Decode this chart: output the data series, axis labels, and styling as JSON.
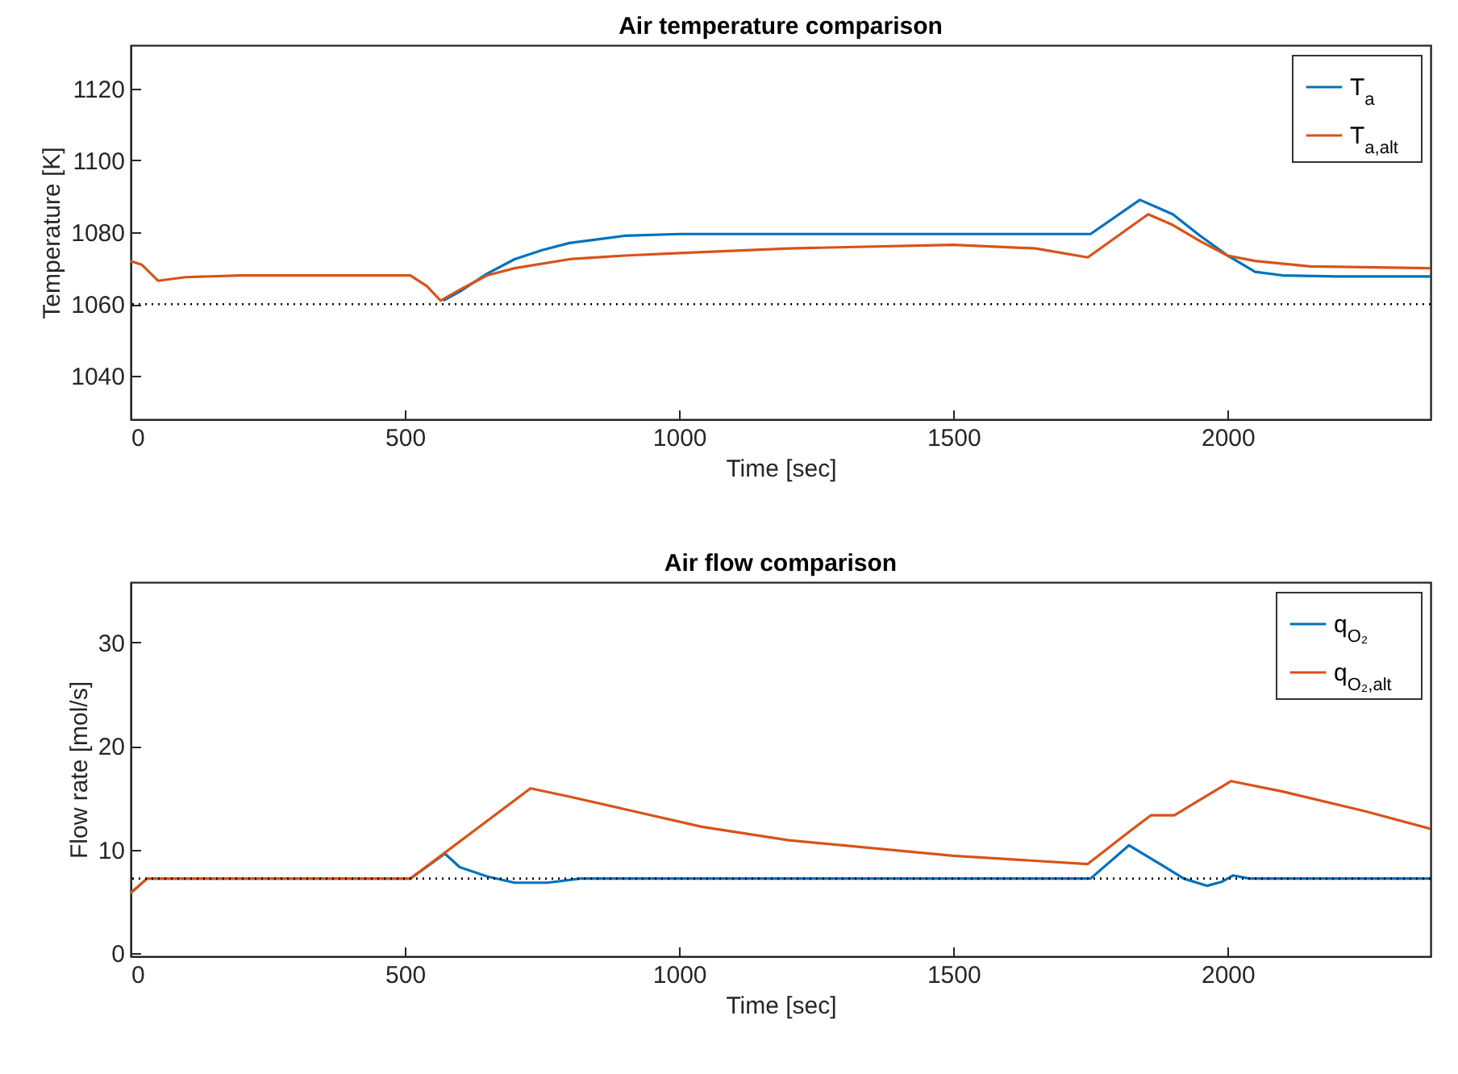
{
  "chart_data": [
    {
      "type": "line",
      "title": "Air temperature comparison",
      "xlabel": "Time [sec]",
      "ylabel": "Temperature [K]",
      "xlim": [
        0,
        2370
      ],
      "xticks": [
        0,
        500,
        1000,
        1500,
        2000
      ],
      "ylim": [
        1028,
        1132
      ],
      "yticks": [
        1040,
        1060,
        1080,
        1100,
        1120
      ],
      "grid": false,
      "legend": "top right",
      "ref_lines": [
        {
          "axis": "y",
          "value": 1060,
          "color": "#000000",
          "line_style": "dotted"
        }
      ],
      "series": [
        {
          "name": "T$_{a}$",
          "color": "#0072bd",
          "x": [
            570,
            600,
            650,
            700,
            750,
            800,
            900,
            1000,
            1750,
            1840,
            1900,
            1950,
            2000,
            2050,
            2100,
            2200,
            2370
          ],
          "values": [
            1061,
            1063.5,
            1068.5,
            1072.5,
            1075,
            1077,
            1079,
            1079.5,
            1079.5,
            1089,
            1085,
            1079,
            1073.5,
            1069,
            1068,
            1067.7,
            1067.7
          ]
        },
        {
          "name": "T$_{a,alt}$",
          "color": "#d95319",
          "x": [
            0,
            20,
            50,
            100,
            200,
            510,
            540,
            565,
            600,
            650,
            700,
            800,
            900,
            1000,
            1200,
            1500,
            1650,
            1745,
            1855,
            1900,
            1950,
            2000,
            2050,
            2150,
            2370
          ],
          "values": [
            1072,
            1071,
            1066.5,
            1067.5,
            1068,
            1068,
            1065,
            1061,
            1064,
            1068,
            1070,
            1072.5,
            1073.5,
            1074.2,
            1075.5,
            1076.5,
            1075.5,
            1073,
            1085,
            1082,
            1077.5,
            1073.5,
            1072,
            1070.5,
            1070
          ]
        }
      ]
    },
    {
      "type": "line",
      "title": "Air flow comparison",
      "xlabel": "Time [sec]",
      "ylabel": "Flow rate [mol/s]",
      "xlim": [
        0,
        2370
      ],
      "xticks": [
        0,
        500,
        1000,
        1500,
        2000
      ],
      "ylim": [
        -0.3,
        35.8
      ],
      "yticks": [
        0,
        10,
        20,
        30
      ],
      "grid": false,
      "legend": "top right",
      "ref_lines": [
        {
          "axis": "y",
          "value": 7.2,
          "color": "#000000",
          "line_style": "dotted"
        }
      ],
      "series": [
        {
          "name": "q$_{O₂}$",
          "color": "#0072bd",
          "x": [
            0,
            30,
            510,
            573,
            600,
            650,
            700,
            760,
            820,
            1750,
            1820,
            1880,
            1920,
            1962,
            1990,
            2010,
            2040,
            2370
          ],
          "values": [
            5.8,
            7.2,
            7.2,
            9.6,
            8.3,
            7.4,
            6.8,
            6.8,
            7.2,
            7.2,
            10.4,
            8.5,
            7.2,
            6.5,
            6.9,
            7.5,
            7.2,
            7.2
          ]
        },
        {
          "name": "q$_{O₂,alt}$",
          "color": "#d95319",
          "x": [
            0,
            30,
            510,
            729,
            800,
            900,
            1041,
            1200,
            1500,
            1745,
            1820,
            1860,
            1903,
            1940,
            2006,
            2100,
            2250,
            2370
          ],
          "values": [
            5.8,
            7.2,
            7.2,
            15.9,
            15.1,
            13.9,
            12.2,
            10.9,
            9.4,
            8.6,
            11.7,
            13.3,
            13.3,
            14.5,
            16.6,
            15.6,
            13.7,
            12.0
          ]
        }
      ]
    }
  ]
}
